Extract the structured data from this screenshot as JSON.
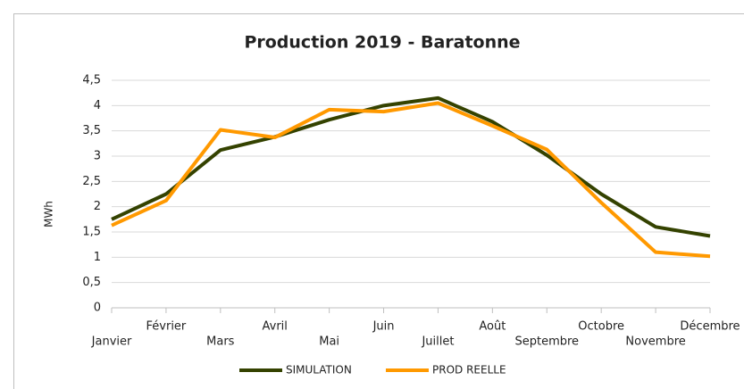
{
  "chart_data": {
    "type": "line",
    "title": "Production 2019 - Baratonne",
    "y_label": "MWh",
    "categories": [
      "Janvier",
      "Février",
      "Mars",
      "Avril",
      "Mai",
      "Juin",
      "Juillet",
      "Août",
      "Septembre",
      "Octobre",
      "Novembre",
      "Décembre"
    ],
    "series": [
      {
        "name": "SIMULATION",
        "color": "#344200",
        "values": [
          1.75,
          2.25,
          3.12,
          3.38,
          3.72,
          4.0,
          4.15,
          3.68,
          3.02,
          2.25,
          1.6,
          1.42
        ]
      },
      {
        "name": "PROD REELLE",
        "color": "#ff9900",
        "values": [
          1.63,
          2.12,
          3.52,
          3.37,
          3.92,
          3.88,
          4.05,
          3.6,
          3.13,
          2.08,
          1.1,
          1.02
        ]
      }
    ],
    "ylim": [
      0,
      4.5
    ],
    "yticks": [
      0,
      {
        "value": 0.5,
        "label": "0,5"
      },
      1,
      {
        "value": 1.5,
        "label": "1,5"
      },
      2,
      {
        "value": 2.5,
        "label": "2,5"
      },
      3,
      {
        "value": 3.5,
        "label": "3,5"
      },
      4,
      {
        "value": 4.5,
        "label": "4,5"
      }
    ],
    "grid": true,
    "legend": "bottom"
  }
}
